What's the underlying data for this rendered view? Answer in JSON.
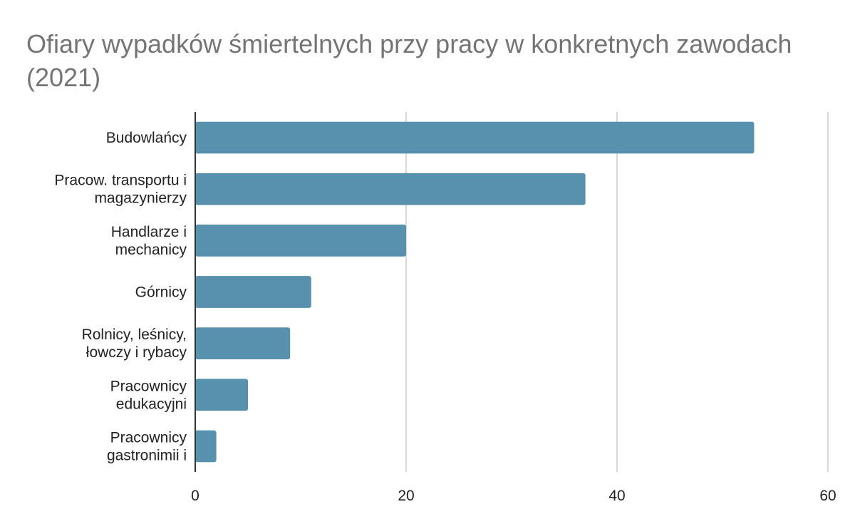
{
  "chart_data": {
    "type": "bar",
    "orientation": "horizontal",
    "title": "Ofiary wypadków śmiertelnych przy pracy w konkretnych zawodach (2021)",
    "categories": [
      [
        "Budowlańcy"
      ],
      [
        "Pracow. transportu i",
        "magazynierzy"
      ],
      [
        "Handlarze i",
        "mechanicy"
      ],
      [
        "Górnicy"
      ],
      [
        "Rolnicy, leśnicy,",
        "łowczy i rybacy"
      ],
      [
        "Pracownicy",
        "edukacyjni"
      ],
      [
        "Pracownicy",
        "gastronimii i"
      ]
    ],
    "values": [
      53,
      37,
      20,
      11,
      9,
      5,
      2
    ],
    "xlim": [
      0,
      60
    ],
    "xticks": [
      0,
      20,
      40,
      60
    ],
    "bar_color": "#5791ad",
    "grid": true
  }
}
